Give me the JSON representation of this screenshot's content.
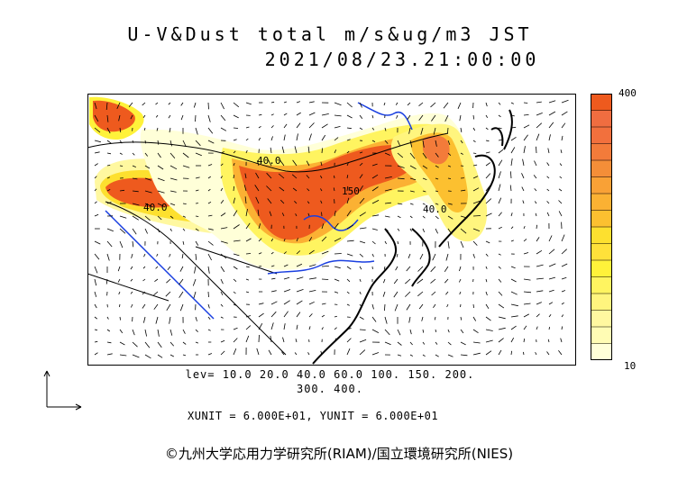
{
  "header": {
    "title_line1": "U-V&Dust total m/s&ug/m3 JST",
    "title_line2": "2021/08/23.21:00:00"
  },
  "colorbar": {
    "max_label": "400",
    "min_label": "10",
    "colors_bottom_to_top": [
      "#ffffd8",
      "#fffcb4",
      "#fff8a0",
      "#fff57e",
      "#fff460",
      "#fff23a",
      "#ffe13a",
      "#fde02f",
      "#fcc030",
      "#fbb133",
      "#f9a136",
      "#f48e38",
      "#f37b3a",
      "#f2703d",
      "#f06d40",
      "#ee5a1e"
    ]
  },
  "legend": {
    "levels_line1": "lev= 10.0 20.0 40.0 60.0 100. 150. 200.",
    "levels_line2": "300. 400.",
    "units": "XUNIT = 6.000E+01, YUNIT = 6.000E+01"
  },
  "map": {
    "contour_labels": [
      "40.0",
      "150",
      "40.0",
      "40.0"
    ]
  },
  "footer": {
    "copyright": "©九州大学応用力学研究所(RIAM)/国立環境研究所(NIES)"
  }
}
